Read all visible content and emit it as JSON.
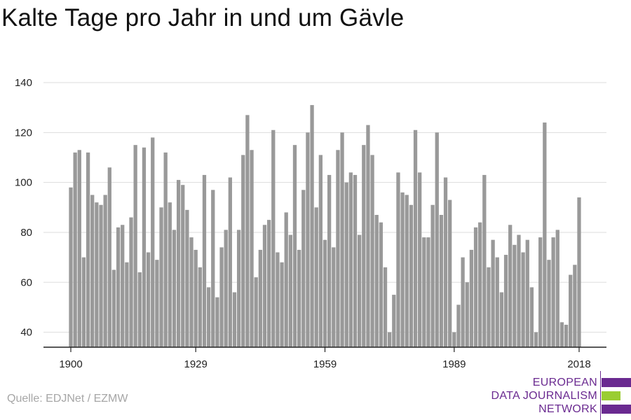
{
  "title": "Kalte Tage pro Jahr in und um Gävle",
  "source": "Quelle: EDJNet / EZMW",
  "logo": {
    "lines": [
      "EUROPEAN",
      "DATA JOURNALISM",
      "NETWORK"
    ],
    "colors": {
      "text": "#6a2a90",
      "purple": "#6a2a90",
      "green": "#9acd32"
    }
  },
  "colors": {
    "bar": "#999999",
    "grid": "#dddddd",
    "axis": "#222222",
    "text": "#222222"
  },
  "chart_data": {
    "type": "bar",
    "title": "Kalte Tage pro Jahr in und um Gävle",
    "x": [
      1900,
      1901,
      1902,
      1903,
      1904,
      1905,
      1906,
      1907,
      1908,
      1909,
      1910,
      1911,
      1912,
      1913,
      1914,
      1915,
      1916,
      1917,
      1918,
      1919,
      1920,
      1921,
      1922,
      1923,
      1924,
      1925,
      1926,
      1927,
      1928,
      1929,
      1930,
      1931,
      1932,
      1933,
      1934,
      1935,
      1936,
      1937,
      1938,
      1939,
      1940,
      1941,
      1942,
      1943,
      1944,
      1945,
      1946,
      1947,
      1948,
      1949,
      1950,
      1951,
      1952,
      1953,
      1954,
      1955,
      1956,
      1957,
      1958,
      1959,
      1960,
      1961,
      1962,
      1963,
      1964,
      1965,
      1966,
      1967,
      1968,
      1969,
      1970,
      1971,
      1972,
      1973,
      1974,
      1975,
      1976,
      1977,
      1978,
      1979,
      1980,
      1981,
      1982,
      1983,
      1984,
      1985,
      1986,
      1987,
      1988,
      1989,
      1990,
      1991,
      1992,
      1993,
      1994,
      1995,
      1996,
      1997,
      1998,
      1999,
      2000,
      2001,
      2002,
      2003,
      2004,
      2005,
      2006,
      2007,
      2008,
      2009,
      2010,
      2011,
      2012,
      2013,
      2014,
      2015,
      2016,
      2017,
      2018
    ],
    "values": [
      98,
      112,
      113,
      70,
      112,
      95,
      92,
      91,
      95,
      106,
      65,
      82,
      83,
      68,
      86,
      115,
      64,
      114,
      72,
      118,
      69,
      90,
      112,
      92,
      81,
      101,
      99,
      89,
      78,
      73,
      66,
      103,
      58,
      97,
      54,
      74,
      81,
      102,
      56,
      81,
      111,
      127,
      113,
      62,
      73,
      83,
      85,
      121,
      72,
      68,
      88,
      79,
      115,
      73,
      97,
      120,
      131,
      90,
      111,
      77,
      103,
      74,
      113,
      120,
      100,
      104,
      103,
      79,
      115,
      123,
      111,
      87,
      84,
      66,
      40,
      55,
      104,
      96,
      95,
      91,
      121,
      104,
      78,
      78,
      91,
      120,
      87,
      102,
      93,
      40,
      51,
      70,
      60,
      73,
      82,
      84,
      103,
      66,
      77,
      70,
      56,
      71,
      83,
      75,
      79,
      72,
      77,
      58,
      40,
      78,
      124,
      69,
      78,
      81,
      44,
      43,
      63,
      67,
      94
    ],
    "xticks": [
      1900,
      1929,
      1959,
      1989,
      2018
    ],
    "xlim": [
      1900,
      2018
    ],
    "yticks": [
      40,
      60,
      80,
      100,
      120,
      140
    ],
    "ylim": [
      34,
      140
    ],
    "grid": true,
    "legend": "none"
  }
}
